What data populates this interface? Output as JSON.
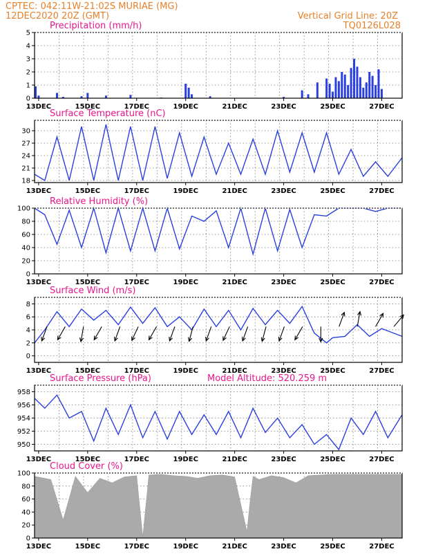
{
  "header": {
    "line1_left": "CPTEC:   042:11W-21:02S   MURIAE (MG)",
    "line2_left": "12DEC2020 20Z (GMT)",
    "line1_right": "Vertical Grid Line: 20Z",
    "line2_right": "TQ0126L028",
    "altitude_label": "Model Altitude: 520.259  m"
  },
  "colors": {
    "series": "#2a3fe0",
    "title": "#e8168c",
    "header": "#e8802a",
    "cloud": "#aaaaaa"
  },
  "x_tick_labels": [
    "13DEC",
    "15DEC",
    "17DEC",
    "19DEC",
    "21DEC",
    "23DEC",
    "25DEC",
    "27DEC"
  ],
  "chart_data": [
    {
      "type": "bar",
      "title": "Precipitation (mm/h)",
      "ylim": [
        0,
        5
      ],
      "yticks": [
        0,
        1,
        2,
        3,
        4,
        5
      ],
      "x": [
        "12DEC21Z",
        "13DEC00Z",
        "13DEC18Z",
        "14DEC00Z",
        "14DEC18Z",
        "15DEC00Z",
        "15DEC18Z",
        "16DEC18Z",
        "18DEC00Z",
        "19DEC00Z",
        "19DEC03Z",
        "19DEC06Z",
        "20DEC00Z",
        "23DEC00Z",
        "23DEC18Z",
        "24DEC00Z",
        "24DEC09Z",
        "24DEC18Z",
        "24DEC21Z",
        "25DEC00Z",
        "25DEC03Z",
        "25DEC06Z",
        "25DEC09Z",
        "25DEC12Z",
        "25DEC15Z",
        "25DEC18Z",
        "25DEC21Z",
        "26DEC00Z",
        "26DEC03Z",
        "26DEC06Z",
        "26DEC09Z",
        "26DEC12Z",
        "26DEC15Z",
        "26DEC18Z",
        "26DEC21Z",
        "27DEC00Z"
      ],
      "values": [
        0.9,
        0.2,
        0.4,
        0.1,
        0.15,
        0.4,
        0.2,
        0.25,
        0.05,
        1.1,
        0.8,
        0.3,
        0.15,
        0.1,
        0.6,
        0.3,
        1.2,
        1.5,
        1.1,
        0.5,
        1.6,
        1.3,
        2.0,
        1.8,
        1.0,
        2.3,
        3.0,
        2.4,
        1.6,
        0.8,
        1.2,
        2.0,
        1.7,
        1.0,
        2.2,
        0.7
      ]
    },
    {
      "type": "line",
      "title": "Surface Temperature (nC)",
      "ylim": [
        17.5,
        32.5
      ],
      "yticks": [
        18,
        21,
        24,
        27,
        30
      ],
      "x": [
        "12DEC20Z",
        "13DEC06Z",
        "13DEC18Z",
        "14DEC06Z",
        "14DEC18Z",
        "15DEC06Z",
        "15DEC18Z",
        "16DEC06Z",
        "16DEC18Z",
        "17DEC06Z",
        "17DEC18Z",
        "18DEC06Z",
        "18DEC18Z",
        "19DEC06Z",
        "19DEC18Z",
        "20DEC06Z",
        "20DEC18Z",
        "21DEC06Z",
        "21DEC18Z",
        "22DEC06Z",
        "22DEC18Z",
        "23DEC06Z",
        "23DEC18Z",
        "24DEC06Z",
        "24DEC18Z",
        "25DEC06Z",
        "25DEC18Z",
        "26DEC06Z",
        "26DEC18Z",
        "27DEC06Z",
        "27DEC20Z"
      ],
      "values": [
        19.5,
        18.0,
        28.5,
        18.0,
        31.0,
        18.0,
        31.5,
        18.0,
        31.0,
        18.0,
        31.0,
        18.5,
        29.5,
        19.0,
        28.5,
        19.5,
        27.0,
        19.5,
        28.0,
        19.5,
        30.0,
        20.0,
        29.5,
        20.0,
        29.5,
        19.5,
        25.5,
        19.0,
        22.5,
        19.0,
        23.5
      ]
    },
    {
      "type": "line",
      "title": "Relative Humidity (%)",
      "ylim": [
        0,
        100
      ],
      "yticks": [
        0,
        20,
        40,
        60,
        80,
        100
      ],
      "x": [
        "12DEC20Z",
        "13DEC06Z",
        "13DEC18Z",
        "14DEC06Z",
        "14DEC18Z",
        "15DEC06Z",
        "15DEC18Z",
        "16DEC06Z",
        "16DEC18Z",
        "17DEC06Z",
        "17DEC18Z",
        "18DEC06Z",
        "18DEC18Z",
        "19DEC06Z",
        "19DEC18Z",
        "20DEC06Z",
        "20DEC18Z",
        "21DEC06Z",
        "21DEC18Z",
        "22DEC06Z",
        "22DEC18Z",
        "23DEC06Z",
        "23DEC18Z",
        "24DEC06Z",
        "24DEC18Z",
        "25DEC06Z",
        "25DEC18Z",
        "26DEC06Z",
        "26DEC18Z",
        "27DEC06Z",
        "27DEC20Z"
      ],
      "values": [
        100,
        90,
        45,
        97,
        40,
        100,
        32,
        100,
        35,
        100,
        35,
        100,
        38,
        88,
        80,
        96,
        40,
        100,
        30,
        100,
        35,
        98,
        40,
        90,
        88,
        100,
        100,
        100,
        95,
        100,
        100
      ]
    },
    {
      "type": "line",
      "title": "Surface Wind (m/s)",
      "ylim": [
        -1,
        9
      ],
      "yticks": [
        0,
        2,
        4,
        6,
        8
      ],
      "x": [
        "12DEC20Z",
        "13DEC06Z",
        "13DEC18Z",
        "14DEC06Z",
        "14DEC18Z",
        "15DEC06Z",
        "15DEC18Z",
        "16DEC06Z",
        "16DEC18Z",
        "17DEC06Z",
        "17DEC18Z",
        "18DEC06Z",
        "18DEC18Z",
        "19DEC06Z",
        "19DEC18Z",
        "20DEC06Z",
        "20DEC18Z",
        "21DEC06Z",
        "21DEC18Z",
        "22DEC06Z",
        "22DEC18Z",
        "23DEC06Z",
        "23DEC18Z",
        "24DEC06Z",
        "24DEC18Z",
        "25DEC00Z",
        "25DEC12Z",
        "26DEC00Z",
        "26DEC12Z",
        "27DEC00Z",
        "27DEC20Z"
      ],
      "values": [
        2.0,
        4.0,
        6.8,
        4.5,
        7.2,
        5.5,
        7.0,
        4.8,
        7.5,
        5.0,
        7.4,
        4.5,
        6.0,
        4.0,
        7.2,
        4.5,
        7.0,
        4.0,
        7.3,
        4.8,
        7.0,
        5.0,
        7.6,
        3.5,
        2.0,
        2.8,
        3.0,
        4.8,
        3.0,
        4.2,
        3.0
      ],
      "barb_headings_deg": [
        200,
        210,
        190,
        210,
        200,
        205,
        210,
        200,
        195,
        200,
        205,
        200,
        195,
        200,
        210,
        180,
        20,
        10,
        30,
        40
      ]
    },
    {
      "type": "line",
      "title": "Surface Pressure (hPa)",
      "ylim": [
        949,
        959
      ],
      "yticks": [
        950,
        952,
        954,
        956,
        958
      ],
      "x": [
        "12DEC20Z",
        "13DEC06Z",
        "13DEC18Z",
        "14DEC06Z",
        "14DEC18Z",
        "15DEC06Z",
        "15DEC18Z",
        "16DEC06Z",
        "16DEC18Z",
        "17DEC06Z",
        "17DEC18Z",
        "18DEC06Z",
        "18DEC18Z",
        "19DEC06Z",
        "19DEC18Z",
        "20DEC06Z",
        "20DEC18Z",
        "21DEC06Z",
        "21DEC18Z",
        "22DEC06Z",
        "22DEC18Z",
        "23DEC06Z",
        "23DEC18Z",
        "24DEC06Z",
        "24DEC18Z",
        "25DEC06Z",
        "25DEC18Z",
        "26DEC06Z",
        "26DEC18Z",
        "27DEC06Z",
        "27DEC20Z"
      ],
      "values": [
        957.0,
        955.5,
        957.5,
        954.0,
        955.0,
        950.5,
        955.5,
        951.5,
        956.0,
        951.0,
        955.0,
        950.8,
        955.0,
        951.5,
        954.5,
        951.5,
        955.0,
        951.0,
        955.5,
        951.8,
        954.0,
        951.0,
        953.0,
        950.0,
        951.5,
        949.2,
        954.0,
        951.5,
        955.0,
        951.0,
        954.5
      ]
    },
    {
      "type": "area",
      "title": "Cloud Cover (%)",
      "ylim": [
        0,
        100
      ],
      "yticks": [
        0,
        20,
        40,
        60,
        80,
        100
      ],
      "x": [
        "12DEC20Z",
        "13DEC12Z",
        "14DEC00Z",
        "14DEC12Z",
        "15DEC00Z",
        "15DEC12Z",
        "16DEC00Z",
        "16DEC12Z",
        "17DEC00Z",
        "17DEC06Z",
        "17DEC12Z",
        "18DEC00Z",
        "18DEC12Z",
        "19DEC00Z",
        "19DEC12Z",
        "20DEC00Z",
        "20DEC12Z",
        "21DEC00Z",
        "21DEC12Z",
        "21DEC15Z",
        "21DEC18Z",
        "22DEC00Z",
        "22DEC12Z",
        "23DEC00Z",
        "23DEC12Z",
        "24DEC00Z",
        "24DEC12Z",
        "25DEC00Z",
        "25DEC12Z",
        "26DEC00Z",
        "26DEC12Z",
        "27DEC00Z",
        "27DEC20Z"
      ],
      "values": [
        95,
        90,
        28,
        95,
        70,
        92,
        85,
        94,
        96,
        2,
        97,
        98,
        96,
        95,
        92,
        96,
        97,
        94,
        10,
        55,
        95,
        90,
        96,
        93,
        85,
        96,
        97,
        98,
        98,
        98,
        98,
        98,
        98
      ]
    }
  ]
}
